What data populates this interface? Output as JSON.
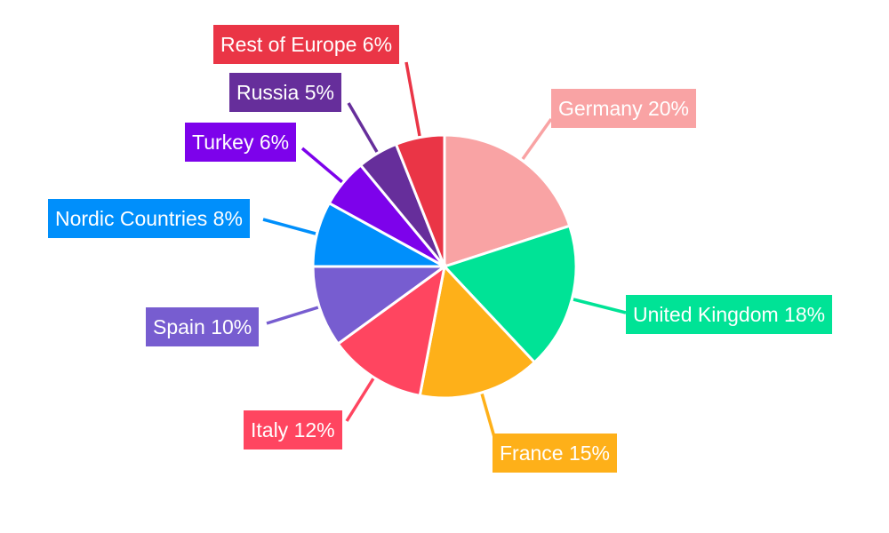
{
  "chart_data": {
    "type": "pie",
    "title": "",
    "start": "top",
    "direction": "clockwise",
    "slices": [
      {
        "label": "Germany 20%",
        "name": "Germany",
        "value": 20,
        "color": "#F9A3A4"
      },
      {
        "label": "United Kingdom 18%",
        "name": "United Kingdom",
        "value": 18,
        "color": "#00E396"
      },
      {
        "label": "France 15%",
        "name": "France",
        "value": 15,
        "color": "#FEB019"
      },
      {
        "label": "Italy 12%",
        "name": "Italy",
        "value": 12,
        "color": "#FF4560"
      },
      {
        "label": "Spain 10%",
        "name": "Spain",
        "value": 10,
        "color": "#775DD0"
      },
      {
        "label": "Nordic Countries 8%",
        "name": "Nordic Countries",
        "value": 8,
        "color": "#008FFB"
      },
      {
        "label": "Turkey 6%",
        "name": "Turkey",
        "value": 6,
        "color": "#7D02EB"
      },
      {
        "label": "Russia 5%",
        "name": "Russia",
        "value": 5,
        "color": "#662E9B"
      },
      {
        "label": "Rest of Europe 6%",
        "name": "Rest of Europe",
        "value": 6,
        "color": "#EA3546"
      }
    ]
  }
}
